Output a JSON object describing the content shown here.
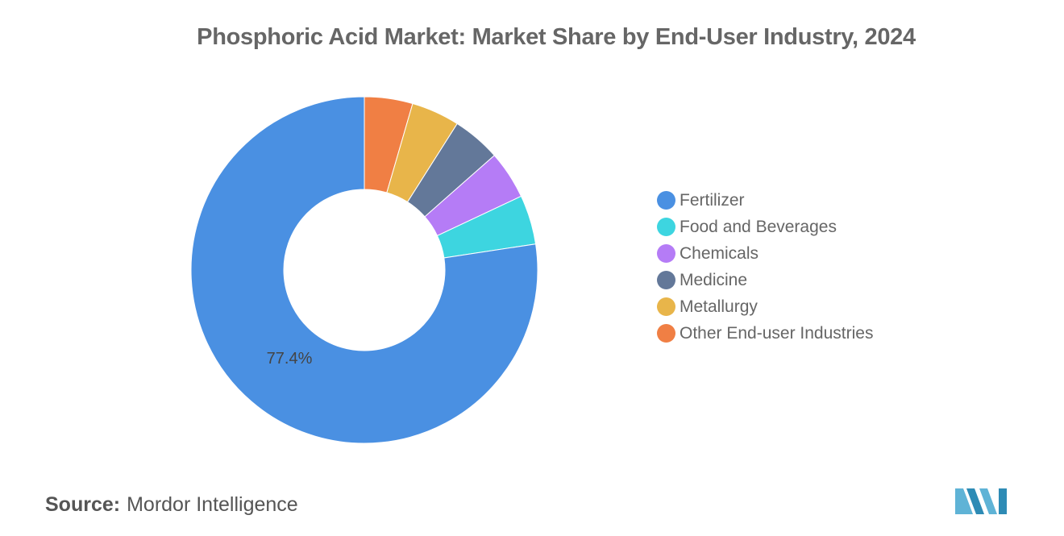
{
  "chart_data": {
    "type": "pie",
    "donut": true,
    "title": "Phosphoric Acid Market: Market Share by End-User Industry, 2024",
    "start_at_top": true,
    "slices": [
      {
        "label": "Fertilizer",
        "value": 77.4,
        "color": "#4a90e2",
        "data_label": "77.4%"
      },
      {
        "label": "Food and Beverages",
        "value": 4.6,
        "color": "#3dd5e0"
      },
      {
        "label": "Chemicals",
        "value": 4.5,
        "color": "#b57cf6"
      },
      {
        "label": "Medicine",
        "value": 4.5,
        "color": "#637899"
      },
      {
        "label": "Metallurgy",
        "value": 4.5,
        "color": "#e8b54a"
      },
      {
        "label": "Other End-user Industries",
        "value": 4.5,
        "color": "#f07f44"
      }
    ],
    "legend_position": "right"
  },
  "source": {
    "label": "Source:",
    "text": "Mordor Intelligence"
  }
}
